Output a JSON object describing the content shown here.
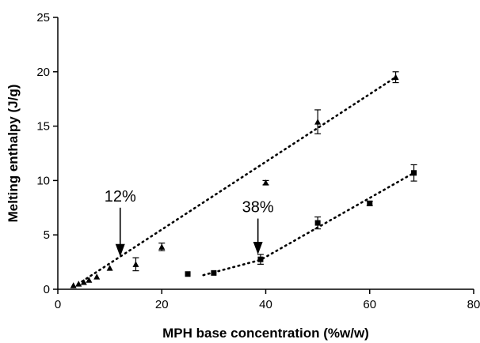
{
  "chart_data": {
    "type": "scatter",
    "title": "",
    "xlabel": "MPH base concentration (%w/w)",
    "ylabel": "Melting enthalpy (J/g)",
    "xlim": [
      0,
      80
    ],
    "ylim": [
      0,
      25
    ],
    "xticks": [
      "0",
      "20",
      "40",
      "60",
      "80"
    ],
    "yticks": [
      "0",
      "5",
      "10",
      "15",
      "20",
      "25"
    ],
    "grid": false,
    "legend": "none",
    "series": [
      {
        "marker": "triangle",
        "color": "#000000",
        "points": [
          {
            "x": 3,
            "y": 0.35
          },
          {
            "x": 4,
            "y": 0.5
          },
          {
            "x": 5,
            "y": 0.65
          },
          {
            "x": 6,
            "y": 0.85
          },
          {
            "x": 7.5,
            "y": 1.15
          },
          {
            "x": 10,
            "y": 1.95
          },
          {
            "x": 15,
            "y": 2.3,
            "err": 0.6
          },
          {
            "x": 20,
            "y": 3.9,
            "err": 0.35
          },
          {
            "x": 40,
            "y": 9.8,
            "err": 0.2
          },
          {
            "x": 50,
            "y": 15.4,
            "err": 1.1
          },
          {
            "x": 65,
            "y": 19.5,
            "err": 0.5
          }
        ],
        "trend": [
          [
            3,
            0.2
          ],
          [
            65,
            19.5
          ]
        ]
      },
      {
        "marker": "square",
        "color": "#000000",
        "points": [
          {
            "x": 25,
            "y": 1.4
          },
          {
            "x": 30,
            "y": 1.5
          },
          {
            "x": 39,
            "y": 2.75,
            "err": 0.45
          },
          {
            "x": 50,
            "y": 6.1,
            "err": 0.55
          },
          {
            "x": 60,
            "y": 7.9,
            "err": 0.2
          },
          {
            "x": 68.5,
            "y": 10.7,
            "err": 0.75
          }
        ],
        "trend": [
          [
            28,
            1.3
          ],
          [
            39,
            2.7
          ],
          [
            68.5,
            10.7
          ]
        ]
      }
    ],
    "annotations": [
      {
        "text": "12%",
        "x": 12,
        "arrow_top_y": 7.5,
        "arrow_tip_y": 3.0
      },
      {
        "text": "38%",
        "x": 38.5,
        "arrow_top_y": 6.5,
        "arrow_tip_y": 3.2
      }
    ]
  }
}
